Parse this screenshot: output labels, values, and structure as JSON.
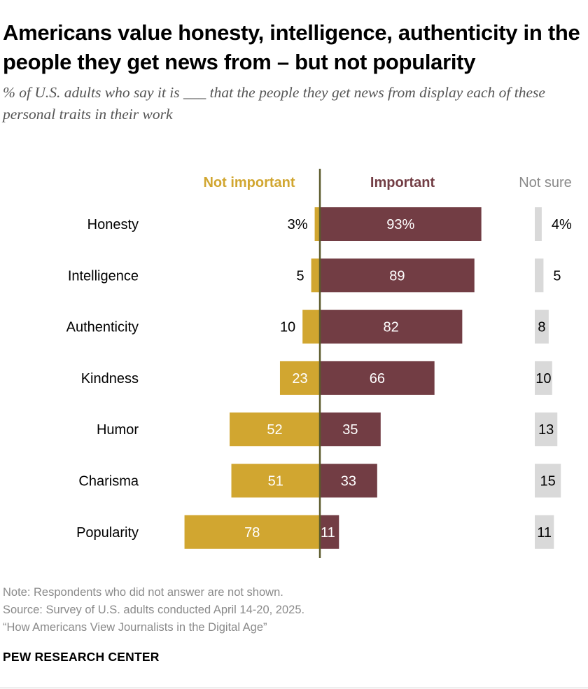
{
  "header": {
    "title": "Americans value honesty, intelligence, authenticity in the people they get news from – but not popularity",
    "subtitle": "% of U.S. adults who say it is ___ that the people they get news from display each of these personal traits in their work"
  },
  "chart_data": {
    "type": "bar",
    "title": "Americans value honesty, intelligence, authenticity in the people they get news from – but not popularity",
    "categories": [
      "Honesty",
      "Intelligence",
      "Authenticity",
      "Kindness",
      "Humor",
      "Charisma",
      "Popularity"
    ],
    "series": [
      {
        "name": "Not important",
        "color": "#d1a630",
        "values": [
          3,
          5,
          10,
          23,
          52,
          51,
          78
        ],
        "labels": [
          "3%",
          "5",
          "10",
          "23",
          "52",
          "51",
          "78"
        ]
      },
      {
        "name": "Important",
        "color": "#723d44",
        "values": [
          93,
          89,
          82,
          66,
          35,
          33,
          11
        ],
        "labels": [
          "93%",
          "89",
          "82",
          "66",
          "35",
          "33",
          "11"
        ]
      },
      {
        "name": "Not sure",
        "color": "#d9d9d9",
        "values": [
          4,
          5,
          8,
          10,
          13,
          15,
          11
        ],
        "labels": [
          "4%",
          "5",
          "8",
          "10",
          "13",
          "15",
          "11"
        ]
      }
    ],
    "legend": {
      "not_important": "Not important",
      "important": "Important",
      "not_sure": "Not sure"
    },
    "axis_color": "#5b5a2c",
    "label_color_dark": "#000000",
    "label_color_light": "#ffffff",
    "legend_color_not_sure": "#8a8a8a",
    "xlabel": "",
    "ylabel": ""
  },
  "footer": {
    "note": "Note: Respondents who did not answer are not shown.",
    "source": "Source: Survey of U.S. adults conducted April 14-20, 2025.",
    "report": "“How Americans View Journalists in the Digital Age”",
    "brand": "PEW RESEARCH CENTER"
  }
}
